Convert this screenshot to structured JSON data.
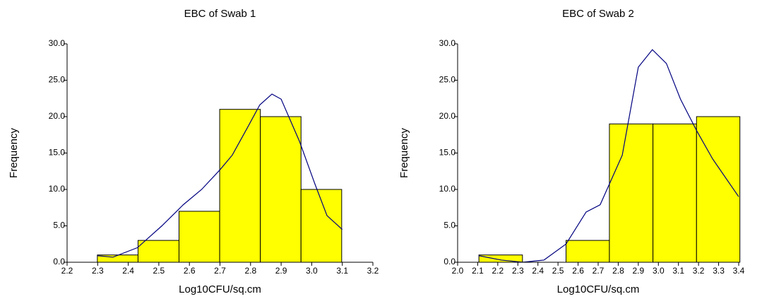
{
  "chart_data": [
    {
      "type": "histogram",
      "title": "EBC of Swab 1",
      "xlabel": "Log10CFU/sq.cm",
      "ylabel": "Frequency",
      "color": "#ffff00",
      "curve_color": "#000080",
      "bins": [
        2.299,
        2.432,
        2.566,
        2.699,
        2.832,
        2.965,
        3.098
      ],
      "values": [
        1,
        3,
        7,
        21,
        20,
        10
      ],
      "curve": {
        "x": [
          2.299,
          2.35,
          2.43,
          2.51,
          2.58,
          2.64,
          2.7,
          2.74,
          2.79,
          2.83,
          2.87,
          2.9,
          2.96,
          3.01,
          3.05,
          3.1
        ],
        "values": [
          0.9,
          0.7,
          2,
          5,
          7.9,
          10,
          12.7,
          14.7,
          18.5,
          21.6,
          23.1,
          22.4,
          16.6,
          10.8,
          6.4,
          4.5
        ]
      },
      "xlim": [
        2.2,
        3.2
      ],
      "ylim": [
        0,
        30
      ],
      "xticks": [
        2.2,
        2.3,
        2.4,
        2.5,
        2.6,
        2.7,
        2.8,
        2.9,
        {
          "value": 3,
          "label": "3.0"
        },
        3.1,
        3.2
      ],
      "yticks": [
        {
          "value": 0,
          "label": "0.0"
        },
        {
          "value": 5,
          "label": "5.0"
        },
        {
          "value": 10,
          "label": "10.0"
        },
        {
          "value": 15,
          "label": "15.0"
        },
        {
          "value": 20,
          "label": "20.0"
        },
        {
          "value": 25,
          "label": "25.0"
        },
        {
          "value": 30,
          "label": "30.0"
        }
      ]
    },
    {
      "type": "histogram",
      "title": "EBC of Swab 2",
      "xlabel": "Log10CFU/sq.cm",
      "ylabel": "Frequency",
      "color": "#ffff00",
      "curve_color": "#000080",
      "bins": [
        2.106,
        2.323,
        2.54,
        2.756,
        2.973,
        3.19,
        3.406
      ],
      "values": [
        1,
        0,
        3,
        19,
        19,
        20
      ],
      "curve": {
        "x": [
          2.106,
          2.218,
          2.324,
          2.43,
          2.54,
          2.64,
          2.71,
          2.82,
          2.9,
          2.97,
          3.04,
          3.11,
          3.19,
          3.27,
          3.4
        ],
        "values": [
          0.9,
          0.3,
          0,
          0.3,
          2.5,
          6.9,
          7.9,
          14.7,
          26.8,
          29.2,
          27.3,
          22.4,
          18.1,
          14.2,
          9.0
        ]
      },
      "xlim": [
        2.0,
        3.4
      ],
      "ylim": [
        0,
        30
      ],
      "xticks": [
        {
          "value": 2,
          "label": "2.0"
        },
        2.1,
        2.2,
        2.3,
        2.4,
        2.5,
        2.6,
        2.7,
        2.8,
        2.9,
        {
          "value": 3,
          "label": "3.0"
        },
        3.1,
        3.2,
        3.3,
        3.4
      ],
      "yticks": [
        {
          "value": 0,
          "label": "0.0"
        },
        {
          "value": 5,
          "label": "5.0"
        },
        {
          "value": 10,
          "label": "10.0"
        },
        {
          "value": 15,
          "label": "15.0"
        },
        {
          "value": 20,
          "label": "20.0"
        },
        {
          "value": 25,
          "label": "25.0"
        },
        {
          "value": 30,
          "label": "30.0"
        }
      ]
    }
  ]
}
